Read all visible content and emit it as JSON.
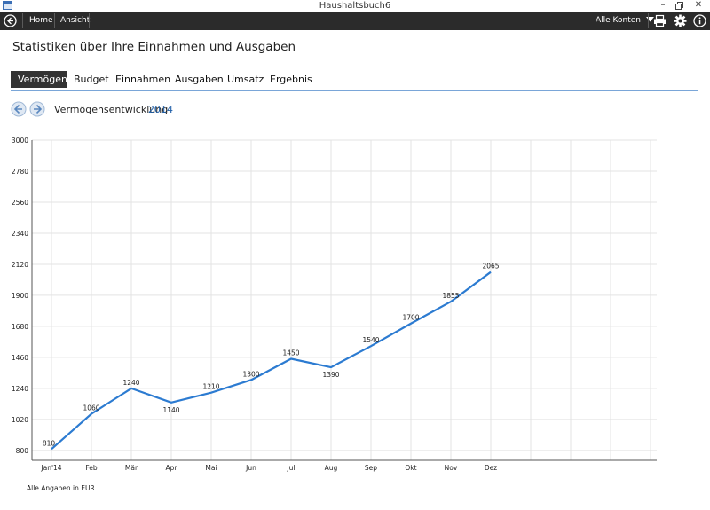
{
  "window": {
    "title": "Haushaltsbuch6"
  },
  "appbar": {
    "home_label": "Home",
    "view_label": "Ansicht",
    "accounts_label": "Alle Konten"
  },
  "page": {
    "heading": "Statistiken über Ihre Einnahmen und Ausgaben",
    "tabs": [
      {
        "label": "Vermögen",
        "active": true
      },
      {
        "label": "Budget"
      },
      {
        "label": "Einnahmen"
      },
      {
        "label": "Ausgaben"
      },
      {
        "label": "Umsatz"
      },
      {
        "label": "Ergebnis"
      }
    ],
    "subtitle": "Vermögensentwicklung",
    "year": "2014",
    "footnote": "Alle Angaben in EUR"
  },
  "chart_data": {
    "type": "line",
    "categories": [
      "Jan'14",
      "Feb",
      "Mär",
      "Apr",
      "Mai",
      "Jun",
      "Jul",
      "Aug",
      "Sep",
      "Okt",
      "Nov",
      "Dez"
    ],
    "values": [
      810,
      1060,
      1240,
      1140,
      1210,
      1300,
      1450,
      1390,
      1540,
      1700,
      1855,
      2065
    ],
    "yticks": [
      800,
      1020,
      1240,
      1460,
      1680,
      1900,
      2120,
      2340,
      2560,
      2780,
      3000
    ],
    "ylim": [
      730,
      3000
    ],
    "grid": true,
    "color": "#2c7bd1"
  }
}
